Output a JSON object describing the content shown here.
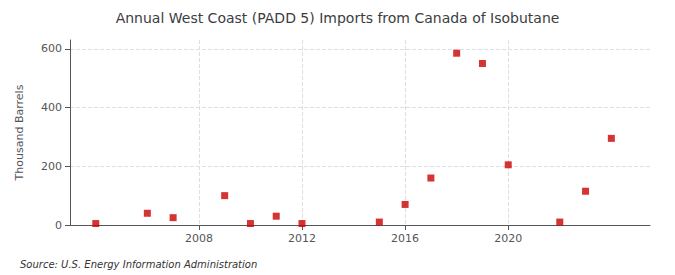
{
  "chart_data": {
    "type": "scatter",
    "title": "Annual West Coast (PADD 5) Imports from Canada of Isobutane",
    "ylabel": "Thousand Barrels",
    "source": "Source: U.S. Energy Information Administration",
    "x": [
      2004,
      2006,
      2007,
      2009,
      2010,
      2011,
      2012,
      2015,
      2016,
      2017,
      2018,
      2019,
      2020,
      2022,
      2023,
      2024
    ],
    "values": [
      5,
      40,
      25,
      100,
      5,
      30,
      5,
      10,
      70,
      160,
      585,
      550,
      205,
      10,
      115,
      295
    ],
    "color": "#cc0000",
    "marker": "square",
    "xlim": [
      2003,
      2025.5
    ],
    "ylim": [
      0,
      630
    ],
    "xticks": [
      2008,
      2012,
      2016,
      2020
    ],
    "yticks": [
      0,
      200,
      400,
      600
    ],
    "grid": true
  }
}
